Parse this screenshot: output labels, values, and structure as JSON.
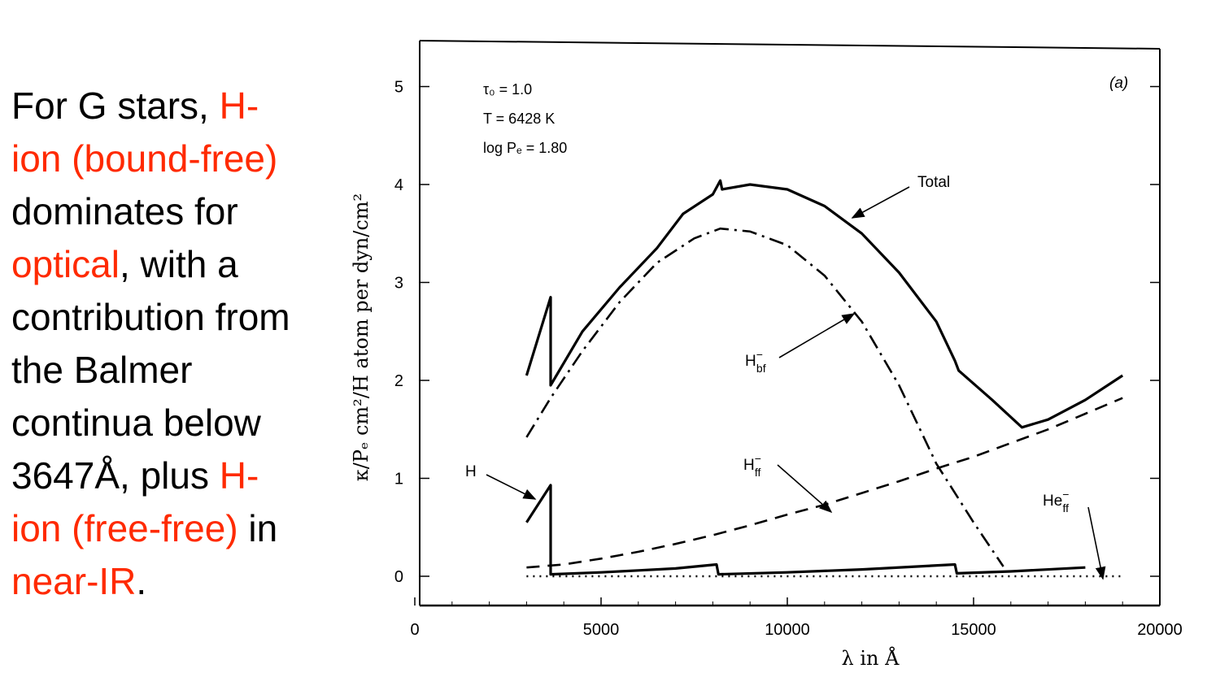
{
  "text": {
    "l1_a": "For G stars, ",
    "l1_b": "H-",
    "l2": "ion (bound-free)",
    "l3": "dominates for",
    "l4_a": "optical",
    "l4_b": ", with a",
    "l5": "contribution from",
    "l6": "the Balmer",
    "l7": "continua below",
    "l8_a": "3647Å, plus ",
    "l8_b": "H-",
    "l9_a": "ion (free-free)",
    "l9_b": " in",
    "l10_a": "near-IR",
    "l10_b": "."
  },
  "colors": {
    "highlight": "#ff2a00",
    "ink": "#000000"
  },
  "chart_data": {
    "type": "line",
    "panel_label": "(a)",
    "params": [
      "τ₀ = 1.0",
      "T = 6428 K",
      "log Pₑ = 1.80"
    ],
    "xlabel": "λ in Å",
    "ylabel": "κ/Pₑ cm²/H atom per dyn/cm²",
    "xlim": [
      0,
      20000
    ],
    "ylim": [
      -0.3,
      5.5
    ],
    "xticks": [
      0,
      5000,
      10000,
      15000,
      20000
    ],
    "yticks": [
      0,
      1,
      2,
      3,
      4,
      5
    ],
    "series": [
      {
        "name": "Total",
        "style": "solid",
        "points": [
          [
            3000,
            2.05
          ],
          [
            3647,
            2.85
          ],
          [
            3647,
            1.95
          ],
          [
            4500,
            2.5
          ],
          [
            5500,
            2.95
          ],
          [
            6500,
            3.35
          ],
          [
            7200,
            3.7
          ],
          [
            8000,
            3.9
          ],
          [
            8200,
            4.04
          ],
          [
            8250,
            3.95
          ],
          [
            9000,
            4.0
          ],
          [
            10000,
            3.95
          ],
          [
            11000,
            3.78
          ],
          [
            12000,
            3.5
          ],
          [
            13000,
            3.1
          ],
          [
            14000,
            2.6
          ],
          [
            14500,
            2.2
          ],
          [
            14600,
            2.1
          ],
          [
            15500,
            1.8
          ],
          [
            16300,
            1.52
          ],
          [
            17000,
            1.6
          ],
          [
            18000,
            1.8
          ],
          [
            19000,
            2.05
          ]
        ]
      },
      {
        "name": "H⁻bf",
        "style": "dashdot",
        "points": [
          [
            3000,
            1.42
          ],
          [
            3647,
            1.82
          ],
          [
            4500,
            2.3
          ],
          [
            5500,
            2.8
          ],
          [
            6500,
            3.2
          ],
          [
            7500,
            3.45
          ],
          [
            8200,
            3.55
          ],
          [
            9000,
            3.52
          ],
          [
            10000,
            3.38
          ],
          [
            11000,
            3.07
          ],
          [
            12000,
            2.6
          ],
          [
            13000,
            1.95
          ],
          [
            14000,
            1.15
          ],
          [
            15000,
            0.55
          ],
          [
            15800,
            0.1
          ]
        ]
      },
      {
        "name": "H⁻ff",
        "style": "dashed",
        "points": [
          [
            3000,
            0.09
          ],
          [
            4000,
            0.12
          ],
          [
            5000,
            0.18
          ],
          [
            6000,
            0.25
          ],
          [
            7000,
            0.33
          ],
          [
            8000,
            0.42
          ],
          [
            9000,
            0.52
          ],
          [
            10000,
            0.63
          ],
          [
            11000,
            0.73
          ],
          [
            12000,
            0.85
          ],
          [
            13000,
            0.97
          ],
          [
            14000,
            1.1
          ],
          [
            15000,
            1.22
          ],
          [
            16000,
            1.36
          ],
          [
            17000,
            1.5
          ],
          [
            18000,
            1.66
          ],
          [
            19000,
            1.82
          ]
        ]
      },
      {
        "name": "H",
        "style": "solid",
        "points": [
          [
            3000,
            0.55
          ],
          [
            3647,
            0.93
          ],
          [
            3647,
            0.02
          ],
          [
            5000,
            0.04
          ],
          [
            6000,
            0.06
          ],
          [
            7000,
            0.08
          ],
          [
            8100,
            0.12
          ],
          [
            8150,
            0.02
          ],
          [
            10000,
            0.04
          ],
          [
            12000,
            0.07
          ],
          [
            14500,
            0.12
          ],
          [
            14550,
            0.03
          ],
          [
            16000,
            0.05
          ],
          [
            18000,
            0.09
          ]
        ]
      },
      {
        "name": "He⁻ff",
        "style": "dotted",
        "points": [
          [
            3000,
            0.0
          ],
          [
            19000,
            0.0
          ]
        ]
      }
    ],
    "annotations": [
      {
        "id": "total",
        "text": "Total"
      },
      {
        "id": "hbf",
        "text": "H⁻bf"
      },
      {
        "id": "hff",
        "text": "H⁻ff"
      },
      {
        "id": "h",
        "text": "H"
      },
      {
        "id": "heff",
        "text": "He⁻ff"
      }
    ]
  }
}
